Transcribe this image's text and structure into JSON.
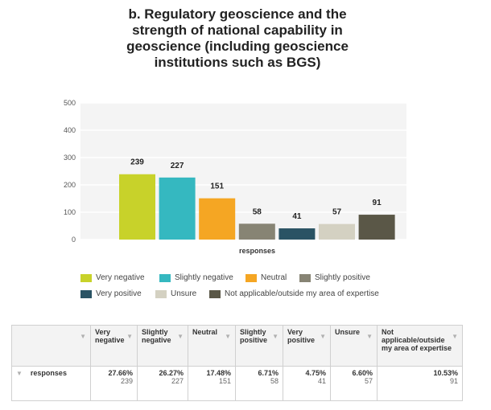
{
  "title": "b. Regulatory geoscience and the\nstrength of national capability in\ngeoscience (including geoscience\ninstitutions such as BGS)",
  "chart_data": {
    "type": "bar",
    "categories": [
      "Very negative",
      "Slightly negative",
      "Neutral",
      "Slightly positive",
      "Very positive",
      "Unsure",
      "Not applicable/outside my area of expertise"
    ],
    "values": [
      239,
      227,
      151,
      58,
      41,
      57,
      91
    ],
    "colors": [
      "#c8d22a",
      "#35b8c0",
      "#f5a623",
      "#878474",
      "#2a5364",
      "#d4d1c2",
      "#5a5747"
    ],
    "xlabel": "responses",
    "ylim": [
      0,
      500
    ],
    "yticks": [
      "0",
      "100",
      "200",
      "300",
      "400",
      "500"
    ],
    "grid": true,
    "legend": "bottom"
  },
  "table": {
    "caret": "▼",
    "headers": [
      "Very negative",
      "Slightly negative",
      "Neutral",
      "Slightly positive",
      "Very positive",
      "Unsure",
      "Not applicable/outside my area of expertise"
    ],
    "row_label": "responses",
    "percents": [
      "27.66%",
      "26.27%",
      "17.48%",
      "6.71%",
      "4.75%",
      "6.60%",
      "10.53%"
    ],
    "counts": [
      "239",
      "227",
      "151",
      "58",
      "41",
      "57",
      "91"
    ]
  }
}
